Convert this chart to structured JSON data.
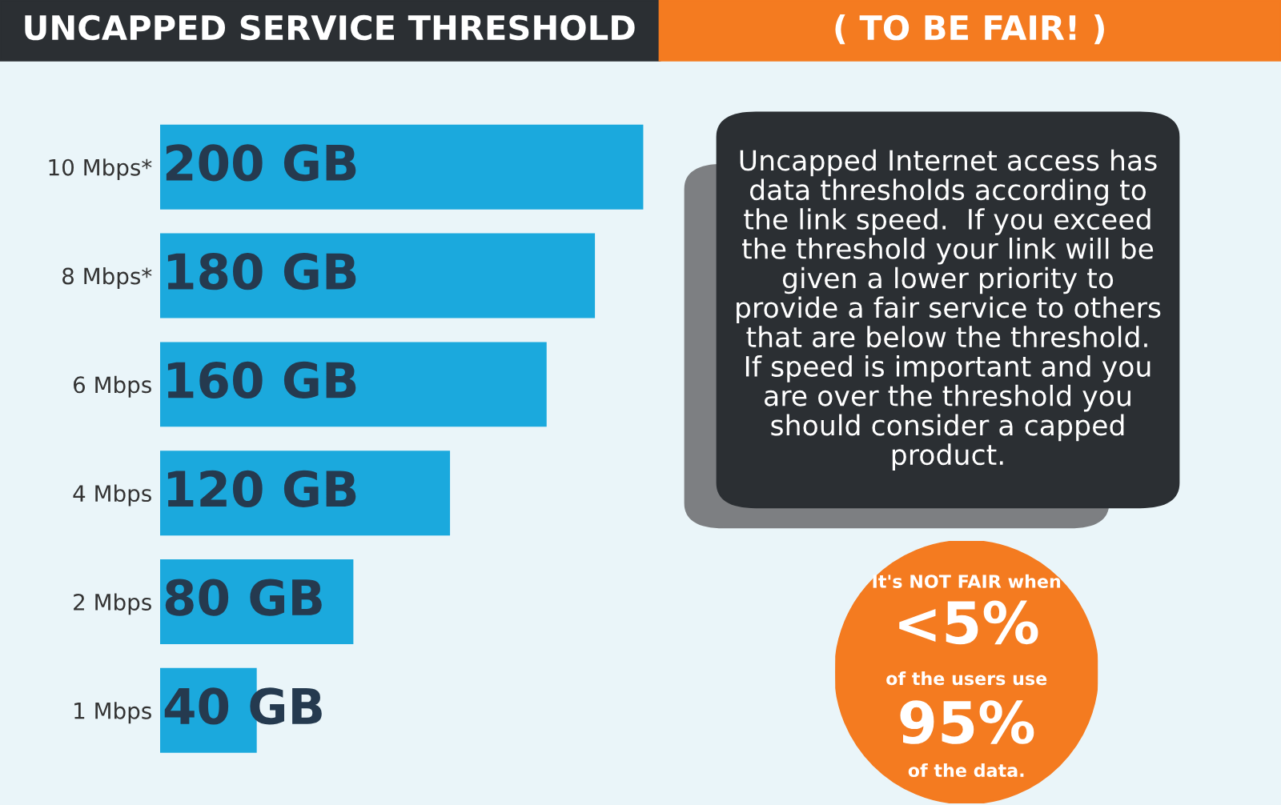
{
  "chart_data": {
    "type": "bar",
    "orientation": "horizontal",
    "title": "UNCAPPED SERVICE THRESHOLD",
    "subtitle": "( TO BE FAIR! )",
    "categories": [
      "10 Mbps*",
      "8 Mbps*",
      "6 Mbps",
      "4 Mbps",
      "2 Mbps",
      "1 Mbps"
    ],
    "values": [
      200,
      180,
      160,
      120,
      80,
      40
    ],
    "value_labels": [
      "200 GB",
      "180 GB",
      "160 GB",
      "120 GB",
      "80 GB",
      "40 GB"
    ],
    "color": "#1ba9dd",
    "tick_labels": "y",
    "grid": false,
    "legend": false,
    "annotations": [
      "Uncapped Internet access has\ndata thresholds according to\nthe link speed.  If you exceed\nthe threshold your link will be\ngiven a lower priority to\nprovide a fair service to others\nthat are below the threshold.\nIf speed is important and you\nare over the threshold you\nshould consider a capped\nproduct.",
      "It's NOT FAIR when",
      "<5%",
      "of the users use",
      "95%",
      "of the data."
    ]
  }
}
